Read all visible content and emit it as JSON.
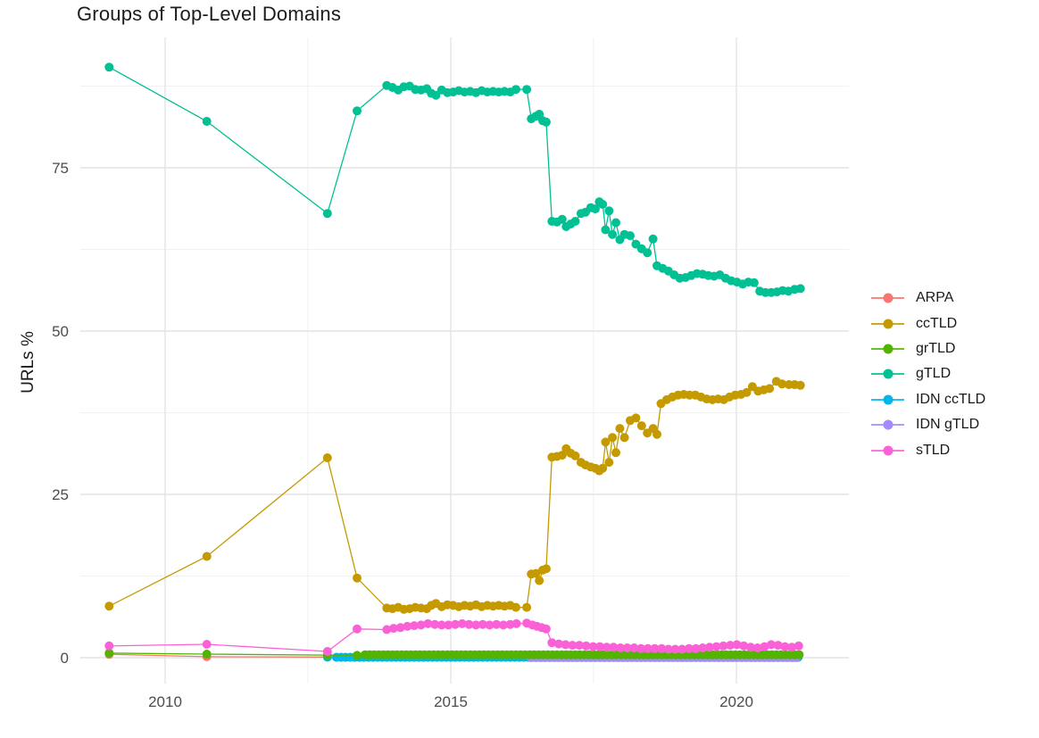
{
  "chart_data": {
    "type": "line",
    "title": "Groups of Top-Level Domains",
    "xlabel": "",
    "ylabel": "URLs %",
    "x_ticks": [
      2010,
      2015,
      2020
    ],
    "x_tick_labels": [
      "2010",
      "2015",
      "2020"
    ],
    "x_minor_ticks": [
      2012.5,
      2017.5
    ],
    "y_ticks": [
      0,
      25,
      50,
      75
    ],
    "y_tick_labels": [
      "0",
      "25",
      "50",
      "75"
    ],
    "y_minor_ticks": [
      12.5,
      37.5,
      62.5,
      87.5
    ],
    "xlim": [
      2008.5,
      2022.0
    ],
    "ylim": [
      -1,
      93
    ],
    "grid": true,
    "grid_major_color": "#E4E4E4",
    "grid_minor_color": "#F1F1F1",
    "background_color": "#FFFFFF",
    "legend_position": "right",
    "draw_order": [
      "ARPA",
      "IDN ccTLD",
      "IDN gTLD",
      "ccTLD",
      "grTLD",
      "gTLD",
      "sTLD"
    ],
    "series": [
      {
        "name": "ARPA",
        "color": "#F8766D",
        "points": [
          [
            2009.02,
            0.5
          ],
          [
            2010.73,
            0.15
          ],
          [
            2012.84,
            0.1
          ]
        ],
        "runs": [
          {
            "x0": 2013.0,
            "x1": 2021.12,
            "dx": 0.08,
            "y": 0.07
          }
        ]
      },
      {
        "name": "ccTLD",
        "color": "#C49A00",
        "points": [
          [
            2009.02,
            7.9
          ],
          [
            2010.73,
            15.5
          ],
          [
            2012.84,
            30.6
          ],
          [
            2013.36,
            12.2
          ],
          [
            2013.88,
            7.6
          ],
          [
            2013.98,
            7.5
          ],
          [
            2014.08,
            7.7
          ],
          [
            2014.18,
            7.4
          ],
          [
            2014.28,
            7.5
          ],
          [
            2014.38,
            7.7
          ],
          [
            2014.48,
            7.6
          ],
          [
            2014.58,
            7.5
          ],
          [
            2014.66,
            8.0
          ],
          [
            2014.74,
            8.3
          ],
          [
            2014.84,
            7.8
          ],
          [
            2014.94,
            8.1
          ],
          [
            2015.04,
            8.0
          ],
          [
            2015.14,
            7.8
          ],
          [
            2015.24,
            8.0
          ],
          [
            2015.34,
            7.9
          ],
          [
            2015.44,
            8.1
          ],
          [
            2015.54,
            7.8
          ],
          [
            2015.64,
            8.0
          ],
          [
            2015.74,
            7.9
          ],
          [
            2015.84,
            8.0
          ],
          [
            2015.94,
            7.9
          ],
          [
            2016.04,
            8.0
          ],
          [
            2016.14,
            7.7
          ],
          [
            2016.33,
            7.7
          ],
          [
            2016.41,
            12.8
          ],
          [
            2016.49,
            12.9
          ],
          [
            2016.55,
            11.8
          ],
          [
            2016.61,
            13.4
          ],
          [
            2016.67,
            13.6
          ],
          [
            2016.77,
            30.7
          ],
          [
            2016.86,
            30.8
          ],
          [
            2016.95,
            31.0
          ],
          [
            2017.02,
            32.0
          ],
          [
            2017.1,
            31.3
          ],
          [
            2017.18,
            30.9
          ],
          [
            2017.28,
            29.9
          ],
          [
            2017.36,
            29.5
          ],
          [
            2017.45,
            29.2
          ],
          [
            2017.53,
            29.0
          ],
          [
            2017.6,
            28.6
          ],
          [
            2017.66,
            29.0
          ],
          [
            2017.71,
            33.0
          ],
          [
            2017.77,
            29.9
          ],
          [
            2017.83,
            33.7
          ],
          [
            2017.89,
            31.4
          ],
          [
            2017.96,
            35.1
          ],
          [
            2018.04,
            33.7
          ],
          [
            2018.14,
            36.3
          ],
          [
            2018.24,
            36.7
          ],
          [
            2018.34,
            35.5
          ],
          [
            2018.44,
            34.4
          ],
          [
            2018.54,
            35.1
          ],
          [
            2018.61,
            34.2
          ],
          [
            2018.68,
            38.9
          ],
          [
            2018.78,
            39.5
          ],
          [
            2018.88,
            39.9
          ],
          [
            2018.98,
            40.2
          ],
          [
            2019.08,
            40.3
          ],
          [
            2019.18,
            40.2
          ],
          [
            2019.28,
            40.2
          ],
          [
            2019.38,
            39.9
          ],
          [
            2019.48,
            39.6
          ],
          [
            2019.58,
            39.5
          ],
          [
            2019.68,
            39.6
          ],
          [
            2019.78,
            39.5
          ],
          [
            2019.88,
            39.9
          ],
          [
            2019.98,
            40.2
          ],
          [
            2020.08,
            40.3
          ],
          [
            2020.18,
            40.6
          ],
          [
            2020.28,
            41.5
          ],
          [
            2020.38,
            40.8
          ],
          [
            2020.48,
            41.0
          ],
          [
            2020.58,
            41.2
          ],
          [
            2020.7,
            42.3
          ],
          [
            2020.8,
            41.9
          ],
          [
            2020.92,
            41.8
          ],
          [
            2021.02,
            41.8
          ],
          [
            2021.12,
            41.7
          ]
        ]
      },
      {
        "name": "grTLD",
        "color": "#53B400",
        "points": [
          [
            2009.02,
            0.7
          ],
          [
            2010.73,
            0.55
          ],
          [
            2012.84,
            0.4
          ],
          [
            2013.36,
            0.35
          ]
        ],
        "runs": [
          {
            "x0": 2013.5,
            "x1": 2021.12,
            "dx": 0.08,
            "y": 0.45
          }
        ]
      },
      {
        "name": "gTLD",
        "color": "#00C094",
        "points": [
          [
            2009.02,
            90.4
          ],
          [
            2010.73,
            82.1
          ],
          [
            2012.84,
            68.0
          ],
          [
            2013.36,
            83.7
          ],
          [
            2013.88,
            87.6
          ],
          [
            2013.98,
            87.3
          ],
          [
            2014.08,
            86.9
          ],
          [
            2014.18,
            87.4
          ],
          [
            2014.28,
            87.5
          ],
          [
            2014.38,
            87.0
          ],
          [
            2014.48,
            86.9
          ],
          [
            2014.58,
            87.1
          ],
          [
            2014.66,
            86.4
          ],
          [
            2014.74,
            86.1
          ],
          [
            2014.84,
            86.9
          ],
          [
            2014.94,
            86.5
          ],
          [
            2015.04,
            86.6
          ],
          [
            2015.14,
            86.8
          ],
          [
            2015.24,
            86.6
          ],
          [
            2015.34,
            86.7
          ],
          [
            2015.44,
            86.5
          ],
          [
            2015.54,
            86.8
          ],
          [
            2015.64,
            86.6
          ],
          [
            2015.74,
            86.7
          ],
          [
            2015.84,
            86.6
          ],
          [
            2015.94,
            86.7
          ],
          [
            2016.04,
            86.6
          ],
          [
            2016.14,
            87.0
          ],
          [
            2016.33,
            87.0
          ],
          [
            2016.41,
            82.5
          ],
          [
            2016.49,
            82.9
          ],
          [
            2016.55,
            83.2
          ],
          [
            2016.61,
            82.2
          ],
          [
            2016.67,
            82.0
          ],
          [
            2016.77,
            66.8
          ],
          [
            2016.86,
            66.7
          ],
          [
            2016.95,
            67.1
          ],
          [
            2017.02,
            66.0
          ],
          [
            2017.1,
            66.4
          ],
          [
            2017.18,
            66.8
          ],
          [
            2017.28,
            68.0
          ],
          [
            2017.36,
            68.2
          ],
          [
            2017.45,
            68.9
          ],
          [
            2017.53,
            68.7
          ],
          [
            2017.6,
            69.8
          ],
          [
            2017.66,
            69.4
          ],
          [
            2017.71,
            65.5
          ],
          [
            2017.77,
            68.4
          ],
          [
            2017.83,
            64.8
          ],
          [
            2017.89,
            66.6
          ],
          [
            2017.96,
            64.0
          ],
          [
            2018.04,
            64.8
          ],
          [
            2018.14,
            64.6
          ],
          [
            2018.24,
            63.3
          ],
          [
            2018.34,
            62.6
          ],
          [
            2018.44,
            62.0
          ],
          [
            2018.54,
            64.1
          ],
          [
            2018.61,
            60.0
          ],
          [
            2018.71,
            59.6
          ],
          [
            2018.81,
            59.2
          ],
          [
            2018.91,
            58.6
          ],
          [
            2019.01,
            58.1
          ],
          [
            2019.11,
            58.2
          ],
          [
            2019.21,
            58.5
          ],
          [
            2019.31,
            58.8
          ],
          [
            2019.41,
            58.7
          ],
          [
            2019.51,
            58.5
          ],
          [
            2019.61,
            58.4
          ],
          [
            2019.71,
            58.6
          ],
          [
            2019.81,
            58.1
          ],
          [
            2019.91,
            57.7
          ],
          [
            2020.01,
            57.5
          ],
          [
            2020.11,
            57.2
          ],
          [
            2020.21,
            57.5
          ],
          [
            2020.31,
            57.4
          ],
          [
            2020.41,
            56.1
          ],
          [
            2020.51,
            55.9
          ],
          [
            2020.61,
            55.9
          ],
          [
            2020.71,
            56.0
          ],
          [
            2020.81,
            56.2
          ],
          [
            2020.91,
            56.1
          ],
          [
            2021.02,
            56.4
          ],
          [
            2021.12,
            56.5
          ]
        ]
      },
      {
        "name": "IDN ccTLD",
        "color": "#00B6EB",
        "points": [
          [
            2012.84,
            0.08
          ]
        ],
        "runs": [
          {
            "x0": 2013.0,
            "x1": 2021.12,
            "dx": 0.08,
            "y": 0.05
          }
        ]
      },
      {
        "name": "IDN gTLD",
        "color": "#A58AFF",
        "points": [],
        "runs": [
          {
            "x0": 2016.41,
            "x1": 2021.12,
            "dx": 0.08,
            "y": 0.0
          }
        ]
      },
      {
        "name": "sTLD",
        "color": "#FB61D7",
        "points": [
          [
            2009.02,
            1.8
          ],
          [
            2010.73,
            2.05
          ],
          [
            2012.84,
            0.95
          ],
          [
            2013.36,
            4.4
          ],
          [
            2013.88,
            4.3
          ],
          [
            2014.0,
            4.5
          ],
          [
            2014.12,
            4.6
          ],
          [
            2014.24,
            4.8
          ],
          [
            2014.36,
            4.9
          ],
          [
            2014.48,
            5.0
          ],
          [
            2014.6,
            5.2
          ],
          [
            2014.72,
            5.1
          ],
          [
            2014.84,
            5.0
          ],
          [
            2014.96,
            5.0
          ],
          [
            2015.08,
            5.1
          ],
          [
            2015.2,
            5.2
          ],
          [
            2015.32,
            5.1
          ],
          [
            2015.44,
            5.0
          ],
          [
            2015.56,
            5.1
          ],
          [
            2015.68,
            5.0
          ],
          [
            2015.8,
            5.1
          ],
          [
            2015.92,
            5.0
          ],
          [
            2016.04,
            5.1
          ],
          [
            2016.15,
            5.2
          ],
          [
            2016.33,
            5.3
          ],
          [
            2016.43,
            5.0
          ],
          [
            2016.51,
            4.8
          ],
          [
            2016.59,
            4.6
          ],
          [
            2016.67,
            4.4
          ],
          [
            2016.77,
            2.3
          ],
          [
            2016.89,
            2.1
          ],
          [
            2017.01,
            2.0
          ],
          [
            2017.13,
            1.9
          ],
          [
            2017.25,
            1.9
          ],
          [
            2017.37,
            1.8
          ],
          [
            2017.49,
            1.7
          ],
          [
            2017.61,
            1.7
          ],
          [
            2017.73,
            1.6
          ],
          [
            2017.85,
            1.6
          ],
          [
            2017.97,
            1.5
          ],
          [
            2018.09,
            1.5
          ],
          [
            2018.21,
            1.5
          ],
          [
            2018.33,
            1.4
          ],
          [
            2018.45,
            1.4
          ],
          [
            2018.57,
            1.4
          ],
          [
            2018.69,
            1.4
          ],
          [
            2018.81,
            1.3
          ],
          [
            2018.93,
            1.3
          ],
          [
            2019.05,
            1.3
          ],
          [
            2019.17,
            1.4
          ],
          [
            2019.29,
            1.4
          ],
          [
            2019.41,
            1.5
          ],
          [
            2019.53,
            1.6
          ],
          [
            2019.65,
            1.7
          ],
          [
            2019.77,
            1.8
          ],
          [
            2019.89,
            1.9
          ],
          [
            2020.01,
            2.0
          ],
          [
            2020.13,
            1.8
          ],
          [
            2020.25,
            1.6
          ],
          [
            2020.37,
            1.5
          ],
          [
            2020.49,
            1.7
          ],
          [
            2020.61,
            2.0
          ],
          [
            2020.73,
            1.9
          ],
          [
            2020.85,
            1.7
          ],
          [
            2020.97,
            1.6
          ],
          [
            2021.09,
            1.8
          ]
        ]
      }
    ]
  }
}
